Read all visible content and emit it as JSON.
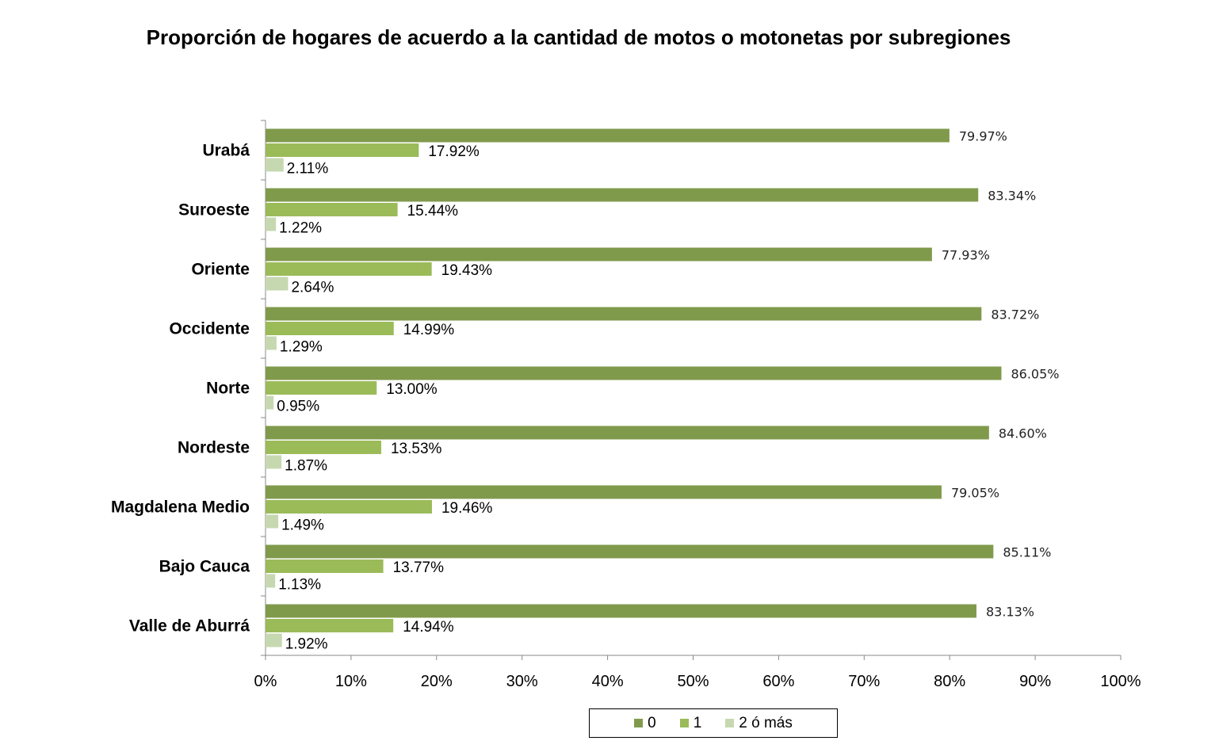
{
  "chart_data": {
    "type": "bar",
    "orientation": "horizontal",
    "title": "Proporción de hogares de acuerdo a la cantidad de motos o motonetas por subregiones",
    "categories": [
      "Urabá",
      "Suroeste",
      "Oriente",
      "Occidente",
      "Norte",
      "Nordeste",
      "Magdalena Medio",
      "Bajo Cauca",
      "Valle de Aburrá"
    ],
    "series": [
      {
        "name": "0",
        "color": "#809a4c",
        "values": [
          79.97,
          83.34,
          77.93,
          83.72,
          86.05,
          84.6,
          79.05,
          85.11,
          83.13
        ],
        "labels": [
          "79.97%",
          "83.34%",
          "77.93%",
          "83.72%",
          "86.05%",
          "84.60%",
          "79.05%",
          "85.11%",
          "83.13%"
        ]
      },
      {
        "name": "1",
        "color": "#9bbb59",
        "values": [
          17.92,
          15.44,
          19.43,
          14.99,
          13.0,
          13.53,
          19.46,
          13.77,
          14.94
        ],
        "labels": [
          "17.92%",
          "15.44%",
          "19.43%",
          "14.99%",
          "13.00%",
          "13.53%",
          "19.46%",
          "13.77%",
          "14.94%"
        ]
      },
      {
        "name": "2 ó más",
        "color": "#c6d8b0",
        "values": [
          2.11,
          1.22,
          2.64,
          1.29,
          0.95,
          1.87,
          1.49,
          1.13,
          1.92
        ],
        "labels": [
          "2.11%",
          "1.22%",
          "2.64%",
          "1.29%",
          "0.95%",
          "1.87%",
          "1.49%",
          "1.13%",
          "1.92%"
        ]
      }
    ],
    "xlim": [
      0,
      100
    ],
    "x_ticks": [
      "0%",
      "10%",
      "20%",
      "30%",
      "40%",
      "50%",
      "60%",
      "70%",
      "80%",
      "90%",
      "100%"
    ],
    "grid": false,
    "legend_position": "bottom"
  }
}
